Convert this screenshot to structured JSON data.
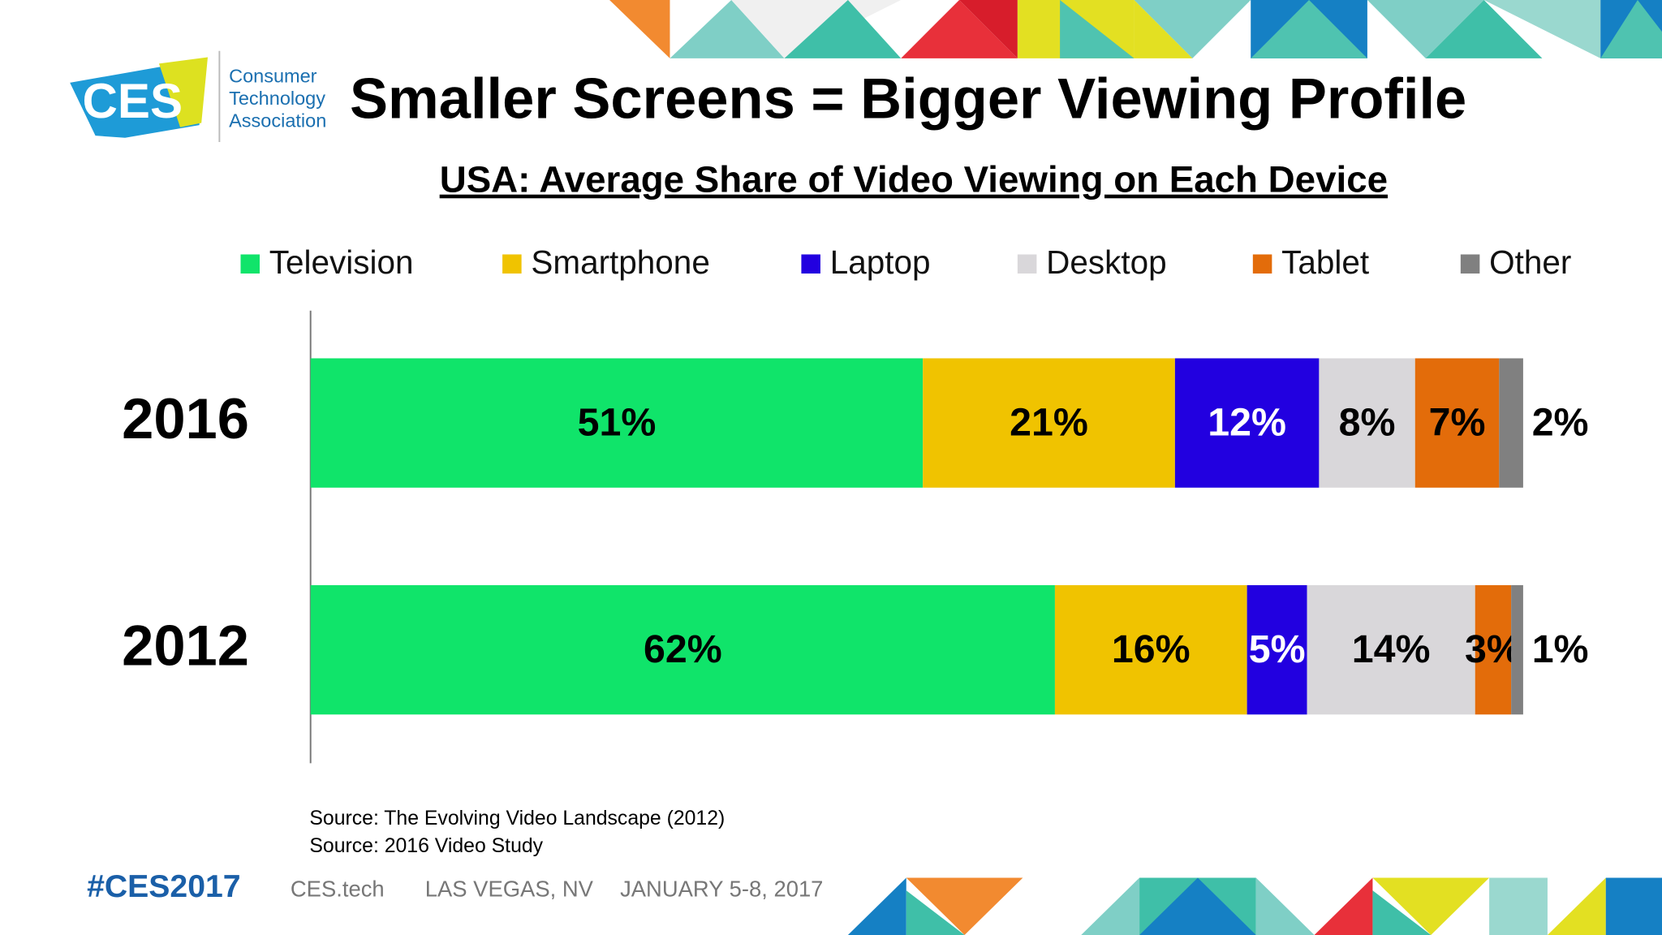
{
  "header": {
    "logo": "CES",
    "org_lines": [
      "Consumer",
      "Technology",
      "Association"
    ]
  },
  "chart_data": {
    "type": "stacked-bar-horizontal",
    "title": "Smaller Screens = Bigger Viewing Profile",
    "subtitle": "USA: Average Share of Video Viewing on Each Device",
    "categories": [
      "2016",
      "2012"
    ],
    "series": [
      {
        "name": "Television",
        "color": "#10e46a",
        "values": [
          51,
          62
        ],
        "value_labels": [
          "51%",
          "62%"
        ]
      },
      {
        "name": "Smartphone",
        "color": "#f0c300",
        "values": [
          21,
          16
        ],
        "value_labels": [
          "21%",
          "16%"
        ]
      },
      {
        "name": "Laptop",
        "color": "#2200e0",
        "label_color": "#ffffff",
        "values": [
          12,
          5
        ],
        "value_labels": [
          "12%",
          "5%"
        ]
      },
      {
        "name": "Desktop",
        "color": "#d9d7da",
        "values": [
          8,
          14
        ],
        "value_labels": [
          "8%",
          "14%"
        ]
      },
      {
        "name": "Tablet",
        "color": "#e36c0a",
        "values": [
          7,
          3
        ],
        "value_labels": [
          "7%",
          "3%"
        ]
      },
      {
        "name": "Other",
        "color": "#808080",
        "values": [
          2,
          1
        ],
        "value_labels": [
          "2%",
          "1%"
        ]
      }
    ],
    "legend": "top",
    "sources": [
      "Source: The Evolving Video Landscape (2012)",
      "Source: 2016 Video Study"
    ]
  },
  "footer": {
    "hashtag": "#CES2017",
    "items": [
      "CES.tech",
      "LAS VEGAS, NV",
      "JANUARY 5-8, 2017"
    ]
  }
}
